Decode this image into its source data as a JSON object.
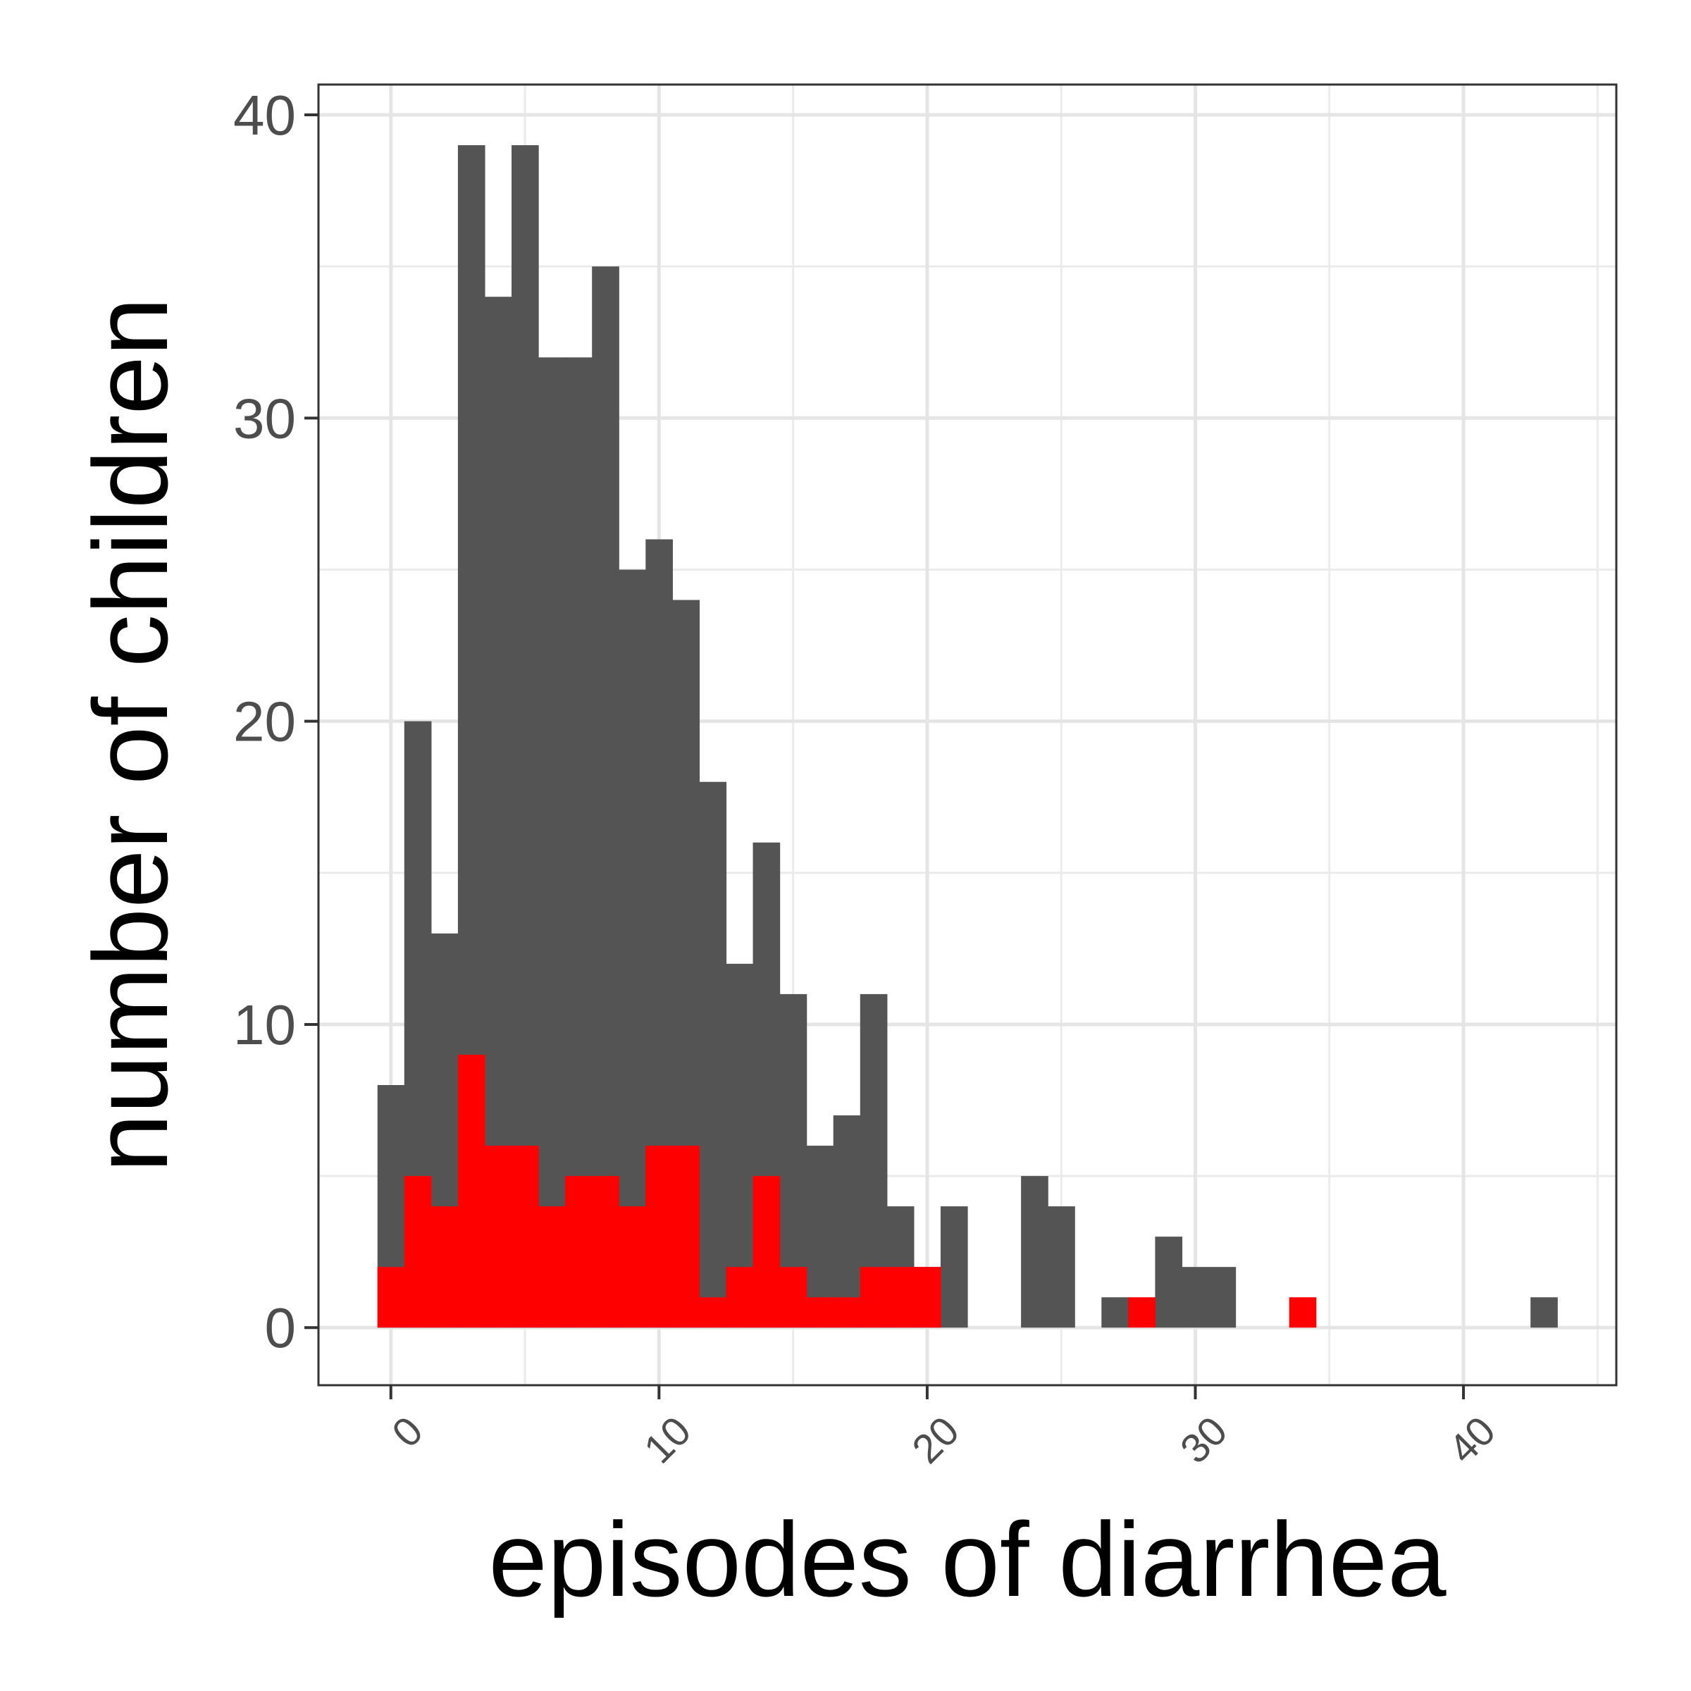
{
  "chart_data": {
    "type": "bar",
    "title": "",
    "xlabel": "episodes of diarrhea",
    "ylabel": "number of children",
    "xlim": [
      -2.7,
      45.7
    ],
    "ylim": [
      -1.9,
      41.0
    ],
    "x_ticks": [
      0,
      10,
      20,
      30,
      40
    ],
    "x_tick_labels": [
      "0",
      "10",
      "20",
      "30",
      "40"
    ],
    "y_ticks": [
      0,
      10,
      20,
      30,
      40
    ],
    "y_tick_labels": [
      "0",
      "10",
      "20",
      "30",
      "40"
    ],
    "grid": true,
    "legend": "none",
    "bin_width": 1,
    "x": [
      0,
      1,
      2,
      3,
      4,
      5,
      6,
      7,
      8,
      9,
      10,
      11,
      12,
      13,
      14,
      15,
      16,
      17,
      18,
      19,
      20,
      21,
      22,
      23,
      24,
      25,
      26,
      27,
      28,
      29,
      30,
      31,
      32,
      33,
      34,
      35,
      36,
      37,
      38,
      39,
      40,
      41,
      42,
      43
    ],
    "series": [
      {
        "color": "#545454",
        "values": [
          8,
          20,
          13,
          39,
          34,
          39,
          32,
          32,
          35,
          25,
          26,
          24,
          18,
          12,
          16,
          11,
          6,
          7,
          11,
          4,
          2,
          4,
          0,
          0,
          5,
          4,
          0,
          1,
          0,
          3,
          2,
          2,
          0,
          0,
          0,
          0,
          0,
          0,
          0,
          0,
          0,
          0,
          0,
          1
        ]
      },
      {
        "color": "#ff0000",
        "values": [
          2,
          5,
          4,
          9,
          6,
          6,
          4,
          5,
          5,
          4,
          6,
          6,
          1,
          2,
          5,
          2,
          1,
          1,
          2,
          2,
          2,
          0,
          0,
          0,
          0,
          0,
          0,
          0,
          1,
          0,
          0,
          0,
          0,
          0,
          1,
          0,
          0,
          0,
          0,
          0,
          0,
          0,
          0,
          0
        ]
      }
    ]
  }
}
